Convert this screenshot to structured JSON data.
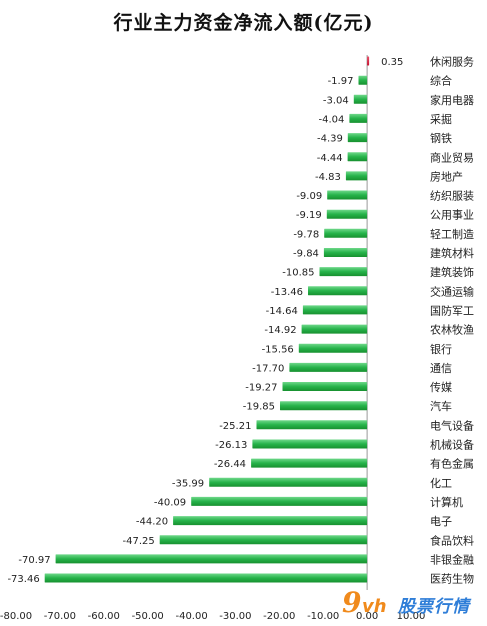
{
  "colors": {
    "negative_bar": "#26b34a",
    "positive_bar": "#c8102e",
    "text": "#222222",
    "axis": "#999999"
  },
  "watermark": {
    "logo_num": "9",
    "logo_vh": "vh",
    "logo_text": "股票行情"
  },
  "chart_data": {
    "type": "bar",
    "orientation": "horizontal",
    "title": "行业主力资金净流入额(亿元)",
    "xlabel": "",
    "ylabel": "",
    "xlim": [
      -80,
      10
    ],
    "xticks": [
      -80,
      -70,
      -60,
      -50,
      -40,
      -30,
      -20,
      -10,
      0,
      10
    ],
    "tick_labels": [
      "-80.00",
      "-70.00",
      "-60.00",
      "-50.00",
      "-40.00",
      "-30.00",
      "-20.00",
      "-10.00",
      "0.00",
      "10.00"
    ],
    "grid": false,
    "categories": [
      "休闲服务",
      "综合",
      "家用电器",
      "采掘",
      "钢铁",
      "商业贸易",
      "房地产",
      "纺织服装",
      "公用事业",
      "轻工制造",
      "建筑材料",
      "建筑装饰",
      "交通运输",
      "国防军工",
      "农林牧渔",
      "银行",
      "通信",
      "传媒",
      "汽车",
      "电气设备",
      "机械设备",
      "有色金属",
      "化工",
      "计算机",
      "电子",
      "食品饮料",
      "非银金融",
      "医药生物"
    ],
    "values": [
      0.35,
      -1.97,
      -3.04,
      -4.04,
      -4.39,
      -4.44,
      -4.83,
      -9.09,
      -9.19,
      -9.78,
      -9.84,
      -10.85,
      -13.46,
      -14.64,
      -14.92,
      -15.56,
      -17.7,
      -19.27,
      -19.85,
      -25.21,
      -26.13,
      -26.44,
      -35.99,
      -40.09,
      -44.2,
      -47.25,
      -70.97,
      -73.46
    ],
    "value_labels": [
      "0.35",
      "-1.97",
      "-3.04",
      "-4.04",
      "-4.39",
      "-4.44",
      "-4.83",
      "-9.09",
      "-9.19",
      "-9.78",
      "-9.84",
      "-10.85",
      "-13.46",
      "-14.64",
      "-14.92",
      "-15.56",
      "-17.70",
      "-19.27",
      "-19.85",
      "-25.21",
      "-26.13",
      "-26.44",
      "-35.99",
      "-40.09",
      "-44.20",
      "-47.25",
      "-70.97",
      "-73.46"
    ]
  }
}
